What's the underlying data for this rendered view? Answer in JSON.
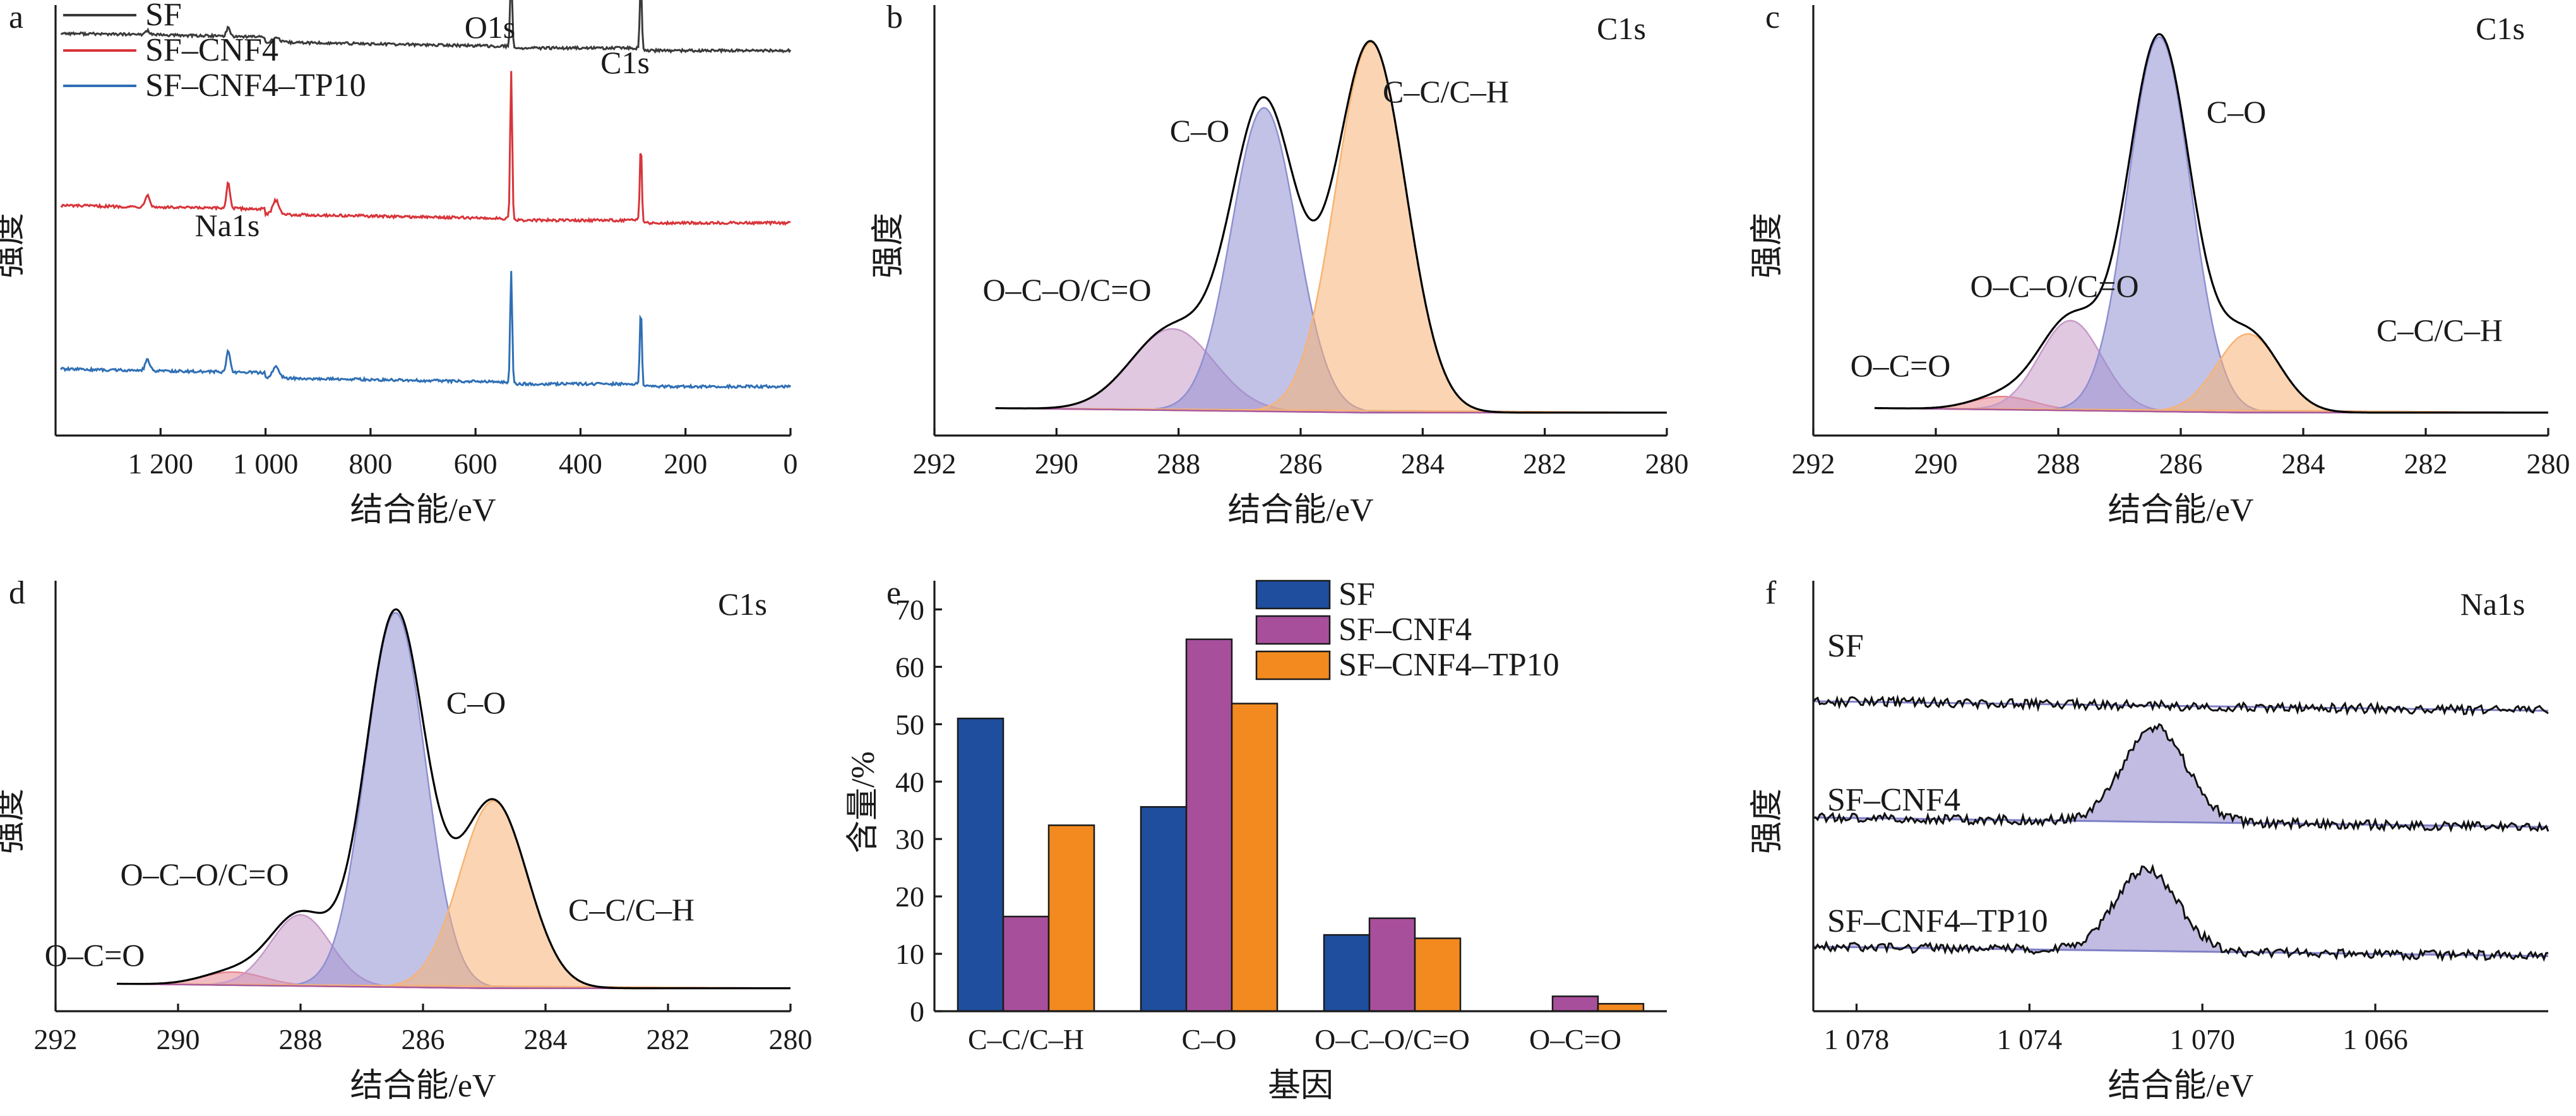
{
  "figure": {
    "panels": [
      "a",
      "b",
      "c",
      "d",
      "e",
      "f"
    ]
  },
  "colors": {
    "SF": "#3a3a3a",
    "SF-CNF4": "#d8343a",
    "SF-CNF4-TP10": "#2f6fb5",
    "fit_envelope": "#000000",
    "peak_C-C/C-H": "#f7b374",
    "peak_C-O": "#8f8fd2",
    "peak_O-C-O/C=O": "#c79ac9",
    "peak_O-C=O": "#e8868f",
    "bar_SF": "#1f4e9e",
    "bar_SF-CNF4": "#a84f9c",
    "bar_SF-CNF4-TP10": "#f28a1f"
  },
  "chart_data": [
    {
      "panel": "a",
      "type": "line",
      "xlabel": "结合能/eV",
      "ylabel": "强度",
      "xlim": [
        1400,
        0
      ],
      "x_reversed": true,
      "xticks": [
        1200,
        1000,
        800,
        600,
        400,
        200,
        0
      ],
      "xtick_labels": [
        "1 200",
        "1 000",
        "800",
        "600",
        "400",
        "200",
        "0"
      ],
      "legend_position": "top-left",
      "series": [
        {
          "name": "SF",
          "baseline": 0.9,
          "peaks": {
            "Na1s": 0.02,
            "O1s": 0.18,
            "C1s": 0.16
          }
        },
        {
          "name": "SF–CNF4",
          "baseline": 0.5,
          "peaks": {
            "Na1s": 0.06,
            "O1s": 0.34,
            "C1s": 0.18
          }
        },
        {
          "name": "SF–CNF4–TP10",
          "baseline": 0.12,
          "peaks": {
            "Na1s": 0.05,
            "O1s": 0.26,
            "C1s": 0.18
          }
        }
      ],
      "annotations": [
        {
          "text": "O1s",
          "x": 530
        },
        {
          "text": "C1s",
          "x": 285
        },
        {
          "text": "Na1s",
          "x": 1071
        }
      ]
    },
    {
      "panel": "b",
      "type": "area",
      "title": "C1s",
      "xlabel": "结合能/eV",
      "ylabel": "强度",
      "xlim": [
        292,
        280
      ],
      "x_reversed": true,
      "xticks": [
        292,
        290,
        288,
        286,
        284,
        282,
        280
      ],
      "components": [
        {
          "name": "O–C–O/C=O",
          "center": 288.1,
          "height": 0.22,
          "fwhm": 1.6
        },
        {
          "name": "C–O",
          "center": 286.6,
          "height": 0.82,
          "fwhm": 1.25
        },
        {
          "name": "C–C/C–H",
          "center": 284.85,
          "height": 1.0,
          "fwhm": 1.35
        }
      ],
      "annotations": [
        {
          "text": "O–C–O/C=O",
          "x": 289.8
        },
        {
          "text": "C–O",
          "x": 287.5
        },
        {
          "text": "C–C/C–H",
          "x": 283.5
        }
      ]
    },
    {
      "panel": "c",
      "type": "area",
      "title": "C1s",
      "xlabel": "结合能/eV",
      "ylabel": "强度",
      "xlim": [
        292,
        280
      ],
      "x_reversed": true,
      "xticks": [
        292,
        290,
        288,
        286,
        284,
        282,
        280
      ],
      "components": [
        {
          "name": "O–C=O",
          "center": 288.9,
          "height": 0.035,
          "fwhm": 1.2
        },
        {
          "name": "O–C–O/C=O",
          "center": 287.8,
          "height": 0.24,
          "fwhm": 1.2
        },
        {
          "name": "C–O",
          "center": 286.35,
          "height": 1.0,
          "fwhm": 1.2
        },
        {
          "name": "C–C/C–H",
          "center": 284.9,
          "height": 0.21,
          "fwhm": 1.2
        }
      ],
      "annotations": [
        {
          "text": "O–C=O",
          "x": 290.8
        },
        {
          "text": "O–C–O/C=O",
          "x": 288.5
        },
        {
          "text": "C–O",
          "x": 285.3
        },
        {
          "text": "C–C/C–H",
          "x": 283.7
        }
      ]
    },
    {
      "panel": "d",
      "type": "area",
      "title": "C1s",
      "xlabel": "结合能/eV",
      "ylabel": "强度",
      "xlim": [
        292,
        280
      ],
      "x_reversed": true,
      "xticks": [
        292,
        290,
        288,
        286,
        284,
        282,
        280
      ],
      "components": [
        {
          "name": "O–C=O",
          "center": 289.1,
          "height": 0.035,
          "fwhm": 1.2
        },
        {
          "name": "O–C–O/C=O",
          "center": 288.0,
          "height": 0.19,
          "fwhm": 1.15
        },
        {
          "name": "C–O",
          "center": 286.45,
          "height": 1.0,
          "fwhm": 1.15
        },
        {
          "name": "C–C/C–H",
          "center": 284.85,
          "height": 0.5,
          "fwhm": 1.3
        }
      ],
      "annotations": [
        {
          "text": "O–C=O",
          "x": 290.7
        },
        {
          "text": "O–C–O/C=O",
          "x": 288.5
        },
        {
          "text": "C–O",
          "x": 285.3
        },
        {
          "text": "C–C/C–H",
          "x": 283.5
        }
      ]
    },
    {
      "panel": "e",
      "type": "bar",
      "xlabel": "基因",
      "ylabel": "含量/%",
      "ylim": [
        0,
        75
      ],
      "yticks": [
        0,
        10,
        20,
        30,
        40,
        50,
        60,
        70
      ],
      "categories": [
        "C–C/C–H",
        "C–O",
        "O–C–O/C=O",
        "O–C=O"
      ],
      "legend_position": "top-center",
      "series": [
        {
          "name": "SF",
          "values": [
            51.0,
            35.6,
            13.3,
            0
          ]
        },
        {
          "name": "SF–CNF4",
          "values": [
            16.5,
            64.8,
            16.2,
            2.6
          ]
        },
        {
          "name": "SF–CNF4–TP10",
          "values": [
            32.4,
            53.6,
            12.7,
            1.3
          ]
        }
      ]
    },
    {
      "panel": "f",
      "type": "line",
      "title": "Na1s",
      "xlabel": "结合能/eV",
      "ylabel": "强度",
      "xlim": [
        1079,
        1062
      ],
      "x_reversed": true,
      "xticks": [
        1078,
        1074,
        1070,
        1066
      ],
      "xtick_labels": [
        "1 078",
        "1 074",
        "1 070",
        "1 066"
      ],
      "series": [
        {
          "name": "SF",
          "peak_center": 1071.2,
          "peak_height": 0.0
        },
        {
          "name": "SF–CNF4",
          "peak_center": 1071.1,
          "peak_height": 0.22
        },
        {
          "name": "SF–CNF4–TP10",
          "peak_center": 1071.3,
          "peak_height": 0.19
        }
      ]
    }
  ]
}
